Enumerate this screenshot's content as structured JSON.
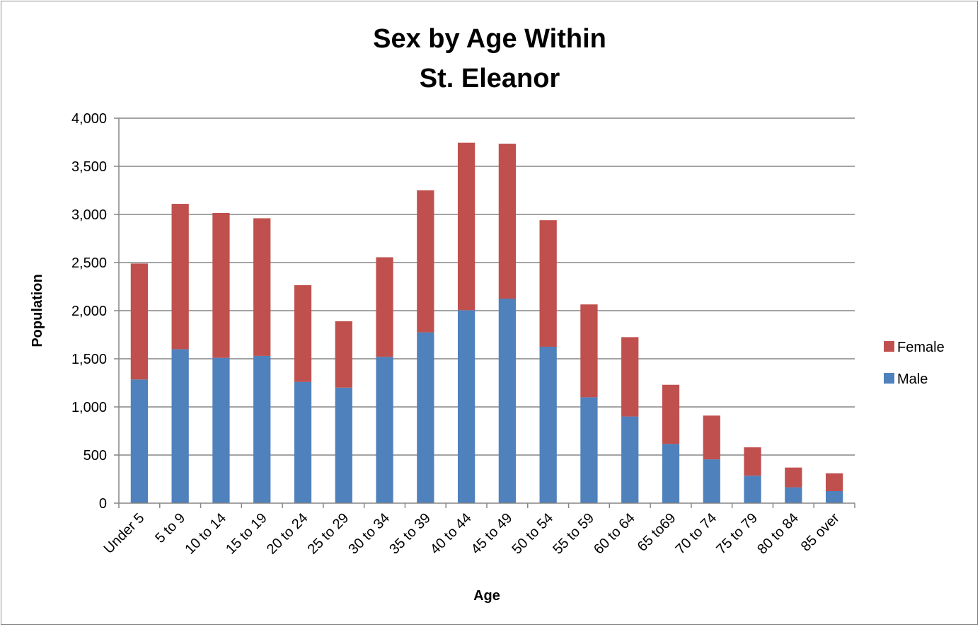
{
  "chart_data": {
    "type": "bar",
    "stacked": true,
    "title_lines": [
      "Sex by Age Within",
      "St. Eleanor"
    ],
    "xlabel": "Age",
    "ylabel": "Population",
    "ylim": [
      0,
      4000
    ],
    "yticks": [
      0,
      500,
      1000,
      1500,
      2000,
      2500,
      3000,
      3500,
      4000
    ],
    "ytick_labels": [
      "0",
      "500",
      "1,000",
      "1,500",
      "2,000",
      "2,500",
      "3,000",
      "3,500",
      "4,000"
    ],
    "grid": true,
    "legend_position": "right",
    "legend_order": [
      "Female",
      "Male"
    ],
    "categories": [
      "Under 5",
      "5 to 9",
      "10 to 14",
      "15 to 19",
      "20 to 24",
      "25 to 29",
      "30 to 34",
      "35 to 39",
      "40 to 44",
      "45 to 49",
      "50 to 54",
      "55 to 59",
      "60 to 64",
      "65 to69",
      "70 to 74",
      "75 to 79",
      "80 to 84",
      "85 over"
    ],
    "series": [
      {
        "name": "Male",
        "color": "#4f81bd",
        "values": [
          1285,
          1600,
          1510,
          1530,
          1260,
          1200,
          1520,
          1775,
          2005,
          2125,
          1625,
          1100,
          900,
          615,
          455,
          285,
          165,
          125
        ]
      },
      {
        "name": "Female",
        "color": "#c0504d",
        "values": [
          1205,
          1510,
          1505,
          1430,
          1005,
          690,
          1035,
          1475,
          1740,
          1610,
          1315,
          965,
          825,
          615,
          455,
          295,
          205,
          185
        ]
      }
    ]
  }
}
